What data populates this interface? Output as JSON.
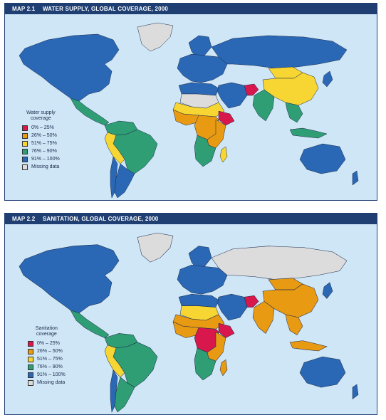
{
  "colors": {
    "ocean": "#cfe6f6",
    "missing": "#dcdcdc",
    "c0_25": "#d8174d",
    "c26_50": "#e89a12",
    "c51_75": "#f7d633",
    "c76_90": "#2f9e74",
    "c91_100": "#2a68b5"
  },
  "maps": [
    {
      "number": "MAP 2.1",
      "title": "WATER SUPPLY, GLOBAL COVERAGE, 2000",
      "legend_title_line1": "Water supply",
      "legend_title_line2": "coverage",
      "legend": [
        {
          "label": "0% – 25%",
          "color": "#d8174d"
        },
        {
          "label": "26% – 50%",
          "color": "#e89a12"
        },
        {
          "label": "51% – 75%",
          "color": "#f7d633"
        },
        {
          "label": "76% – 90%",
          "color": "#2f9e74"
        },
        {
          "label": "91% – 100%",
          "color": "#2a68b5"
        },
        {
          "label": "Missing data",
          "color": "#dcdcdc"
        }
      ],
      "regions": {
        "north_america": "#2a68b5",
        "greenland": "#dcdcdc",
        "central_america": "#2f9e74",
        "colombia_ven": "#2f9e74",
        "brazil": "#2f9e74",
        "peru_bolivia": "#f7d633",
        "argentina": "#2a68b5",
        "chile": "#2a68b5",
        "europe": "#2a68b5",
        "scandinavia": "#2a68b5",
        "russia": "#2a68b5",
        "north_africa": "#2a68b5",
        "sahara": "#dcdcdc",
        "sahel": "#f7d633",
        "west_africa": "#e89a12",
        "central_africa": "#e89a12",
        "east_africa": "#e89a12",
        "horn": "#d8174d",
        "southern_africa": "#2f9e74",
        "madagascar": "#f7d633",
        "middle_east": "#2a68b5",
        "afghanistan": "#d8174d",
        "india": "#2f9e74",
        "china": "#f7d633",
        "mongolia": "#f7d633",
        "se_asia": "#2f9e74",
        "indonesia": "#2f9e74",
        "australia": "#2a68b5",
        "japan": "#2a68b5",
        "nz": "#2a68b5"
      }
    },
    {
      "number": "MAP 2.2",
      "title": "SANITATION, GLOBAL COVERAGE, 2000",
      "legend_title_line1": "Sanitation",
      "legend_title_line2": "coverage",
      "legend": [
        {
          "label": "0% – 25%",
          "color": "#d8174d"
        },
        {
          "label": "26% – 50%",
          "color": "#e89a12"
        },
        {
          "label": "51% – 75%",
          "color": "#f7d633"
        },
        {
          "label": "76% – 90%",
          "color": "#2f9e74"
        },
        {
          "label": "91% – 100%",
          "color": "#2a68b5"
        },
        {
          "label": "Missing data",
          "color": "#dcdcdc"
        }
      ],
      "regions": {
        "north_america": "#2a68b5",
        "greenland": "#dcdcdc",
        "central_america": "#2f9e74",
        "colombia_ven": "#2f9e74",
        "brazil": "#2f9e74",
        "peru_bolivia": "#f7d633",
        "argentina": "#2f9e74",
        "chile": "#2a68b5",
        "europe": "#2a68b5",
        "scandinavia": "#2a68b5",
        "russia": "#dcdcdc",
        "north_africa": "#2a68b5",
        "sahara": "#f7d633",
        "sahel": "#e89a12",
        "west_africa": "#e89a12",
        "central_africa": "#d8174d",
        "east_africa": "#e89a12",
        "horn": "#d8174d",
        "southern_africa": "#2f9e74",
        "madagascar": "#e89a12",
        "middle_east": "#2a68b5",
        "afghanistan": "#d8174d",
        "india": "#e89a12",
        "china": "#e89a12",
        "mongolia": "#e89a12",
        "se_asia": "#e89a12",
        "indonesia": "#e89a12",
        "australia": "#2a68b5",
        "japan": "#2a68b5",
        "nz": "#2a68b5"
      }
    }
  ]
}
